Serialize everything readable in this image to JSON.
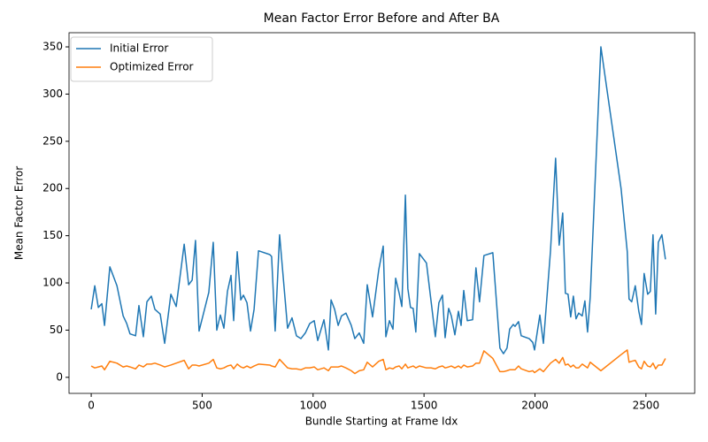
{
  "chart_data": {
    "type": "line",
    "title": "Mean Factor Error Before and After BA",
    "x_label": "Bundle Starting at Frame Idx",
    "y_label": "Mean Factor Error",
    "x": [
      0,
      16,
      32,
      48,
      60,
      84,
      116,
      144,
      160,
      175,
      200,
      215,
      235,
      251,
      271,
      287,
      311,
      331,
      359,
      383,
      419,
      439,
      455,
      470,
      486,
      530,
      550,
      566,
      582,
      598,
      614,
      630,
      642,
      658,
      674,
      686,
      702,
      718,
      734,
      754,
      805,
      813,
      829,
      849,
      885,
      905,
      925,
      945,
      965,
      985,
      1005,
      1021,
      1049,
      1069,
      1081,
      1097,
      1113,
      1128,
      1148,
      1172,
      1188,
      1208,
      1228,
      1244,
      1268,
      1296,
      1316,
      1328,
      1344,
      1360,
      1372,
      1388,
      1400,
      1416,
      1427,
      1439,
      1451,
      1463,
      1479,
      1511,
      1531,
      1551,
      1567,
      1583,
      1595,
      1611,
      1623,
      1639,
      1655,
      1667,
      1679,
      1695,
      1719,
      1734,
      1750,
      1770,
      1810,
      1842,
      1858,
      1874,
      1886,
      1902,
      1910,
      1926,
      1938,
      1974,
      1990,
      1998,
      2022,
      2038,
      2070,
      2093,
      2109,
      2125,
      2137,
      2149,
      2161,
      2173,
      2185,
      2197,
      2213,
      2225,
      2237,
      2249,
      2297,
      2388,
      2416,
      2424,
      2436,
      2452,
      2468,
      2480,
      2492,
      2508,
      2520,
      2532,
      2544,
      2556,
      2572,
      2588
    ],
    "series": [
      {
        "name": "Initial Error",
        "color": "#1f77b4",
        "values": [
          72,
          97,
          74,
          78,
          55,
          117,
          97,
          65,
          57,
          46,
          44,
          76,
          43,
          80,
          86,
          72,
          67,
          36,
          88,
          75,
          141,
          98,
          103,
          145,
          49,
          90,
          143,
          50,
          66,
          52,
          91,
          108,
          60,
          133,
          82,
          87,
          79,
          49,
          72,
          134,
          130,
          128,
          49,
          151,
          52,
          63,
          44,
          41,
          47,
          57,
          60,
          39,
          61,
          29,
          82,
          72,
          55,
          65,
          68,
          55,
          41,
          47,
          36,
          98,
          64,
          114,
          139,
          43,
          60,
          51,
          105,
          89,
          75,
          193,
          94,
          74,
          73,
          48,
          131,
          121,
          82,
          43,
          79,
          87,
          42,
          73,
          65,
          45,
          70,
          55,
          92,
          60,
          61,
          116,
          80,
          129,
          132,
          31,
          25,
          31,
          51,
          56,
          54,
          59,
          44,
          41,
          37,
          29,
          66,
          36,
          134,
          232,
          140,
          174,
          89,
          88,
          64,
          86,
          62,
          68,
          65,
          81,
          48,
          85,
          350,
          200,
          133,
          83,
          80,
          97,
          70,
          56,
          110,
          88,
          91,
          151,
          67,
          143,
          151,
          125
        ]
      },
      {
        "name": "Optimized Error",
        "color": "#ff7f0e",
        "values": [
          12,
          10,
          11,
          12,
          8,
          17,
          15,
          11,
          12,
          11,
          9,
          13,
          11,
          14,
          14,
          15,
          13,
          11,
          13,
          15,
          18,
          9,
          13,
          13,
          12,
          15,
          19,
          10,
          9,
          10,
          12,
          13,
          9,
          14,
          11,
          10,
          12,
          10,
          12,
          14,
          13,
          12,
          11,
          19,
          10,
          9,
          9,
          8,
          10,
          10,
          11,
          8,
          10,
          7,
          11,
          11,
          11,
          12,
          10,
          7,
          4,
          7,
          8,
          16,
          11,
          17,
          19,
          8,
          10,
          9,
          11,
          12,
          9,
          14,
          10,
          11,
          12,
          10,
          12,
          10,
          10,
          9,
          11,
          12,
          10,
          11,
          12,
          10,
          12,
          10,
          13,
          11,
          12,
          15,
          15,
          28,
          20,
          6,
          6,
          7,
          8,
          8,
          8,
          12,
          9,
          6,
          7,
          5,
          9,
          6,
          15,
          19,
          15,
          21,
          13,
          14,
          11,
          13,
          10,
          10,
          14,
          12,
          10,
          16,
          7,
          24,
          29,
          16,
          17,
          18,
          11,
          9,
          17,
          12,
          11,
          15,
          9,
          13,
          13,
          20
        ]
      }
    ],
    "xlim": [
      -100,
      2720
    ],
    "ylim": [
      -17,
      365
    ],
    "xticks": [
      0,
      500,
      1000,
      1500,
      2000,
      2500
    ],
    "yticks": [
      0,
      50,
      100,
      150,
      200,
      250,
      300,
      350
    ],
    "legend": "upper left"
  }
}
